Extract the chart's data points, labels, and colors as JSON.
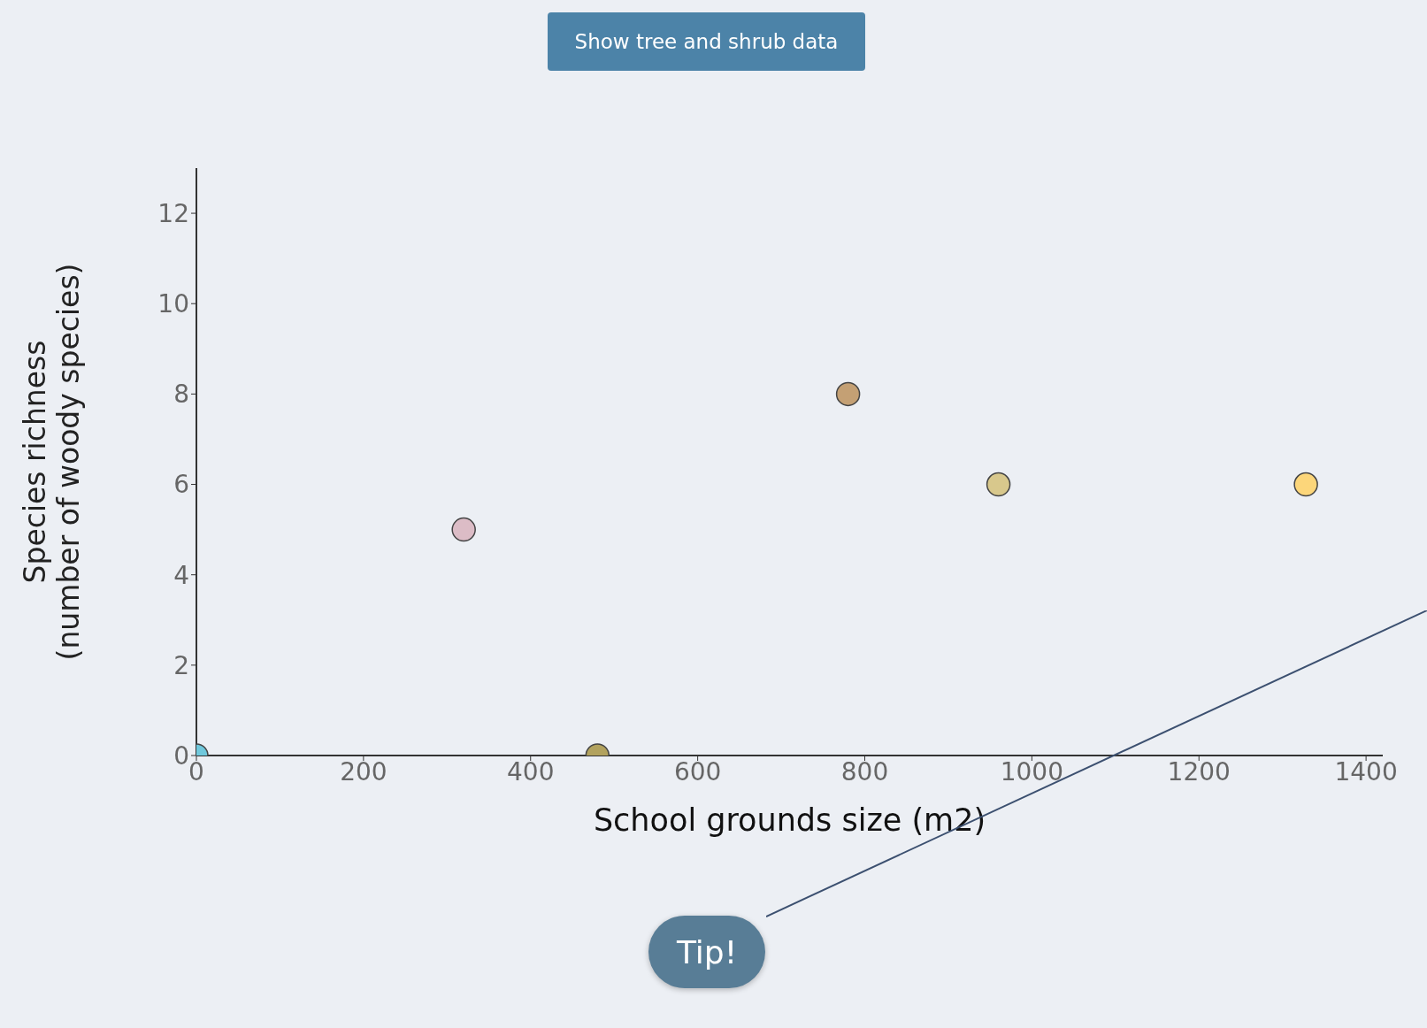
{
  "chart_data": {
    "type": "scatter",
    "xlabel": "School grounds size (m2)",
    "ylabel": "Species richness\n(number of woody species)",
    "x": [
      0,
      320,
      480,
      780,
      960,
      1328
    ],
    "values": [
      0,
      5,
      0,
      8,
      6,
      6
    ],
    "colors": [
      "#70c8dc",
      "#dcbcc6",
      "#b2a25e",
      "#c4a074",
      "#d8c88c",
      "#fcd67a"
    ],
    "xlim": [
      0,
      1420
    ],
    "xticks": [
      0,
      200,
      400,
      600,
      800,
      1000,
      1200,
      1400
    ],
    "ylim": [
      0,
      13
    ],
    "yticks": [
      0,
      2,
      4,
      6,
      8,
      10,
      12
    ],
    "marker": "circle",
    "annotations": [
      "Show tree and shrub data",
      "Tip!"
    ]
  }
}
